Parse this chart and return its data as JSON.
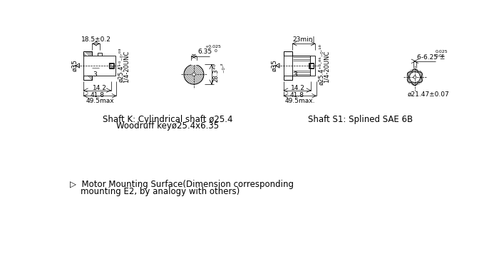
{
  "bg": "#ffffff",
  "lc": "#000000",
  "shaft_k_label1": "Shaft K: Cylindrical shaft ø25.4",
  "shaft_k_label2": "Woodruff keyø25.4x6.35",
  "shaft_s1_label": "Shaft S1: Splined SAE 6B",
  "footer_line1": "▷  Motor Mounting Surface(Dimension corresponding",
  "footer_line2": "    mounting E2, by analogy with others)"
}
